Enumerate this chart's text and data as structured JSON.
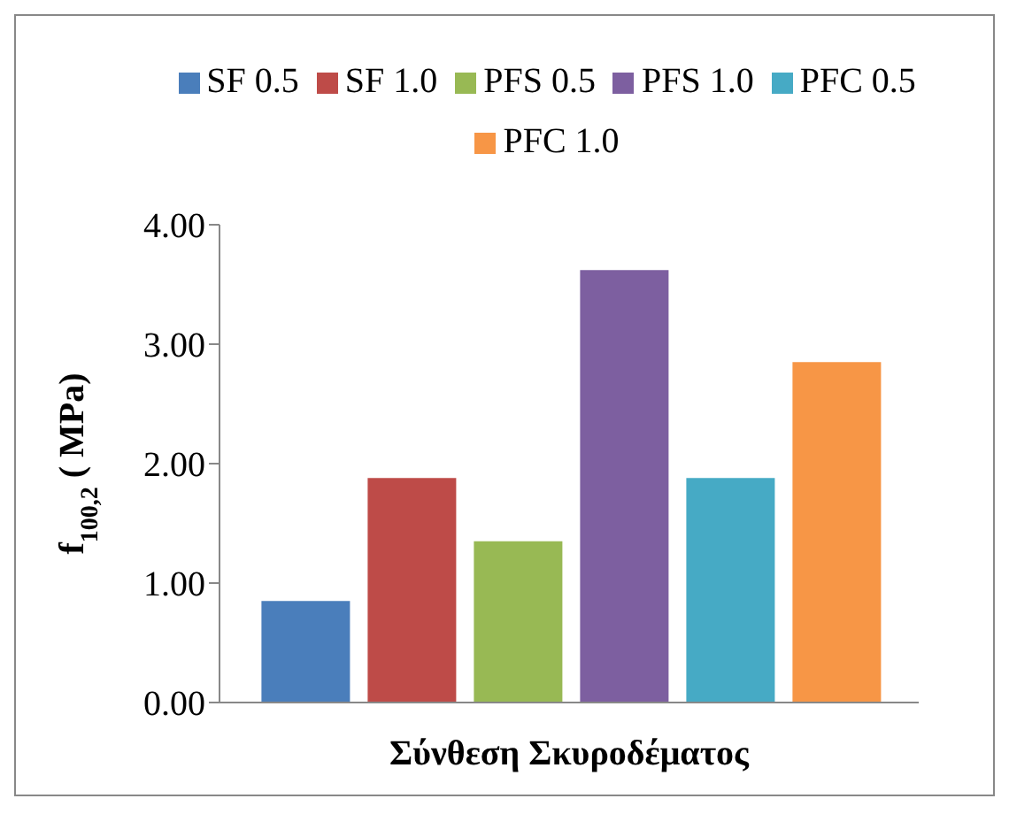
{
  "chart_data": {
    "type": "bar",
    "xlabel": "Σύνθεση Σκυροδέματος",
    "ylabel": "f$_{100,2}$ ( MPa)",
    "categories": [
      null
    ],
    "series": [
      {
        "name": "SF 0.5",
        "color": "#4a7ebb",
        "values": [
          0.85
        ]
      },
      {
        "name": "SF 1.0",
        "color": "#be4b48",
        "values": [
          1.88
        ]
      },
      {
        "name": "PFS 0.5",
        "color": "#98b954",
        "values": [
          1.35
        ]
      },
      {
        "name": "PFS 1.0",
        "color": "#7d5fa0",
        "values": [
          3.62
        ]
      },
      {
        "name": "PFC 0.5",
        "color": "#46aac5",
        "values": [
          1.88
        ]
      },
      {
        "name": "PFC 1.0",
        "color": "#f79646",
        "values": [
          2.85
        ]
      }
    ],
    "ylim": [
      0,
      4
    ],
    "yticks": [
      {
        "value": 0,
        "label": "0.00"
      },
      {
        "value": 1,
        "label": "1.00"
      },
      {
        "value": 2,
        "label": "2.00"
      },
      {
        "value": 3,
        "label": "3.00"
      },
      {
        "value": 4,
        "label": "4.00"
      }
    ],
    "grid": false,
    "legend": "top"
  }
}
